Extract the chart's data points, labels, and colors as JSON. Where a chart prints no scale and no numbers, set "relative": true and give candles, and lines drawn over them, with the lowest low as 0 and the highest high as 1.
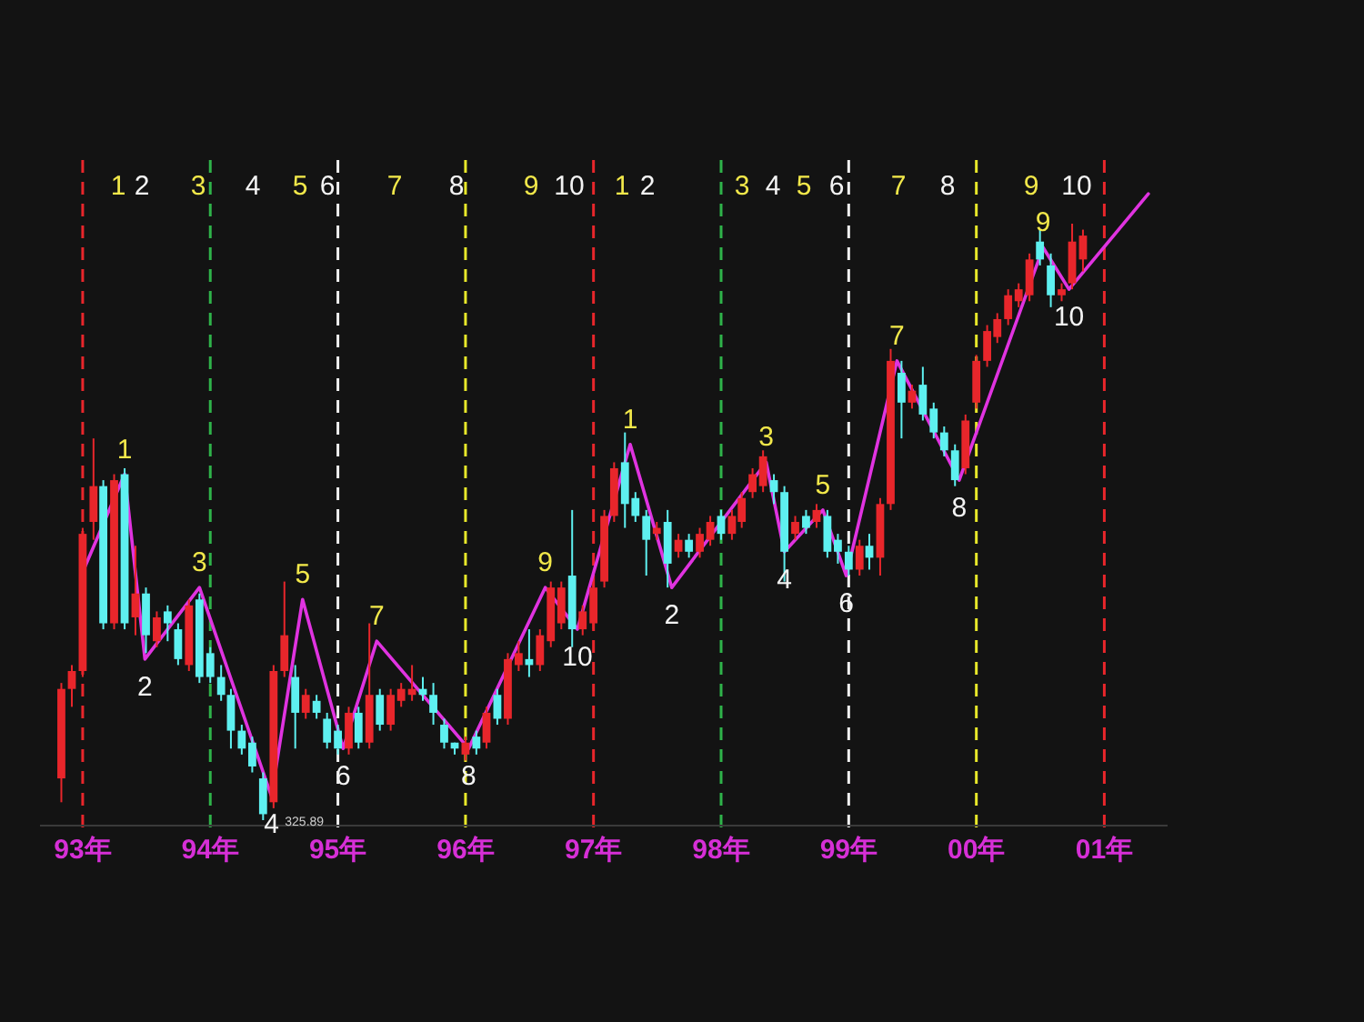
{
  "chart_data": {
    "type": "candlestick",
    "relative": true,
    "tick_labels": "x",
    "x": [
      "1992-11",
      "1992-12",
      "1993-01",
      "1993-02",
      "1993-03",
      "1993-04",
      "1993-05",
      "1993-06",
      "1993-07",
      "1993-08",
      "1993-09",
      "1993-10",
      "1993-11",
      "1993-12",
      "1994-01",
      "1994-02",
      "1994-03",
      "1994-04",
      "1994-05",
      "1994-06",
      "1994-07",
      "1994-08",
      "1994-09",
      "1994-10",
      "1994-11",
      "1994-12",
      "1995-01",
      "1995-02",
      "1995-03",
      "1995-04",
      "1995-05",
      "1995-06",
      "1995-07",
      "1995-08",
      "1995-09",
      "1995-10",
      "1995-11",
      "1995-12",
      "1996-01",
      "1996-02",
      "1996-03",
      "1996-04",
      "1996-05",
      "1996-06",
      "1996-07",
      "1996-08",
      "1996-09",
      "1996-10",
      "1996-11",
      "1996-12",
      "1997-01",
      "1997-02",
      "1997-03",
      "1997-04",
      "1997-05",
      "1997-06",
      "1997-07",
      "1997-08",
      "1997-09",
      "1997-10",
      "1997-11",
      "1997-12",
      "1998-01",
      "1998-02",
      "1998-03",
      "1998-04",
      "1998-05",
      "1998-06",
      "1998-07",
      "1998-08",
      "1998-09",
      "1998-10",
      "1998-11",
      "1998-12",
      "1999-01",
      "1999-02",
      "1999-03",
      "1999-04",
      "1999-05",
      "1999-06",
      "1999-07",
      "1999-08",
      "1999-09",
      "1999-10",
      "1999-11",
      "1999-12",
      "2000-01",
      "2000-02",
      "2000-03",
      "2000-04",
      "2000-05",
      "2000-06",
      "2000-07",
      "2000-08",
      "2000-09",
      "2000-10",
      "2000-11"
    ],
    "ohlc": [
      [
        0.07,
        0.23,
        0.03,
        0.22
      ],
      [
        0.22,
        0.26,
        0.19,
        0.25
      ],
      [
        0.25,
        0.49,
        0.24,
        0.48
      ],
      [
        0.5,
        0.64,
        0.47,
        0.56
      ],
      [
        0.56,
        0.57,
        0.32,
        0.33
      ],
      [
        0.33,
        0.58,
        0.32,
        0.57
      ],
      [
        0.58,
        0.59,
        0.32,
        0.33
      ],
      [
        0.34,
        0.46,
        0.31,
        0.38
      ],
      [
        0.38,
        0.39,
        0.28,
        0.31
      ],
      [
        0.3,
        0.35,
        0.29,
        0.34
      ],
      [
        0.35,
        0.36,
        0.3,
        0.33
      ],
      [
        0.32,
        0.33,
        0.26,
        0.27
      ],
      [
        0.26,
        0.37,
        0.25,
        0.36
      ],
      [
        0.37,
        0.38,
        0.23,
        0.24
      ],
      [
        0.28,
        0.29,
        0.23,
        0.24
      ],
      [
        0.24,
        0.26,
        0.2,
        0.21
      ],
      [
        0.21,
        0.22,
        0.12,
        0.15
      ],
      [
        0.15,
        0.16,
        0.11,
        0.12
      ],
      [
        0.13,
        0.14,
        0.08,
        0.09
      ],
      [
        0.07,
        0.08,
        0,
        0.01
      ],
      [
        0.03,
        0.26,
        0.02,
        0.25
      ],
      [
        0.25,
        0.4,
        0.24,
        0.31
      ],
      [
        0.24,
        0.26,
        0.12,
        0.18
      ],
      [
        0.18,
        0.22,
        0.17,
        0.21
      ],
      [
        0.2,
        0.21,
        0.17,
        0.18
      ],
      [
        0.17,
        0.18,
        0.12,
        0.13
      ],
      [
        0.15,
        0.16,
        0.11,
        0.12
      ],
      [
        0.12,
        0.19,
        0.11,
        0.18
      ],
      [
        0.18,
        0.19,
        0.12,
        0.13
      ],
      [
        0.13,
        0.33,
        0.12,
        0.21
      ],
      [
        0.21,
        0.22,
        0.15,
        0.16
      ],
      [
        0.16,
        0.22,
        0.15,
        0.21
      ],
      [
        0.2,
        0.23,
        0.19,
        0.22
      ],
      [
        0.21,
        0.26,
        0.2,
        0.22
      ],
      [
        0.22,
        0.24,
        0.2,
        0.21
      ],
      [
        0.21,
        0.23,
        0.16,
        0.18
      ],
      [
        0.16,
        0.17,
        0.12,
        0.13
      ],
      [
        0.13,
        0.13,
        0.11,
        0.12
      ],
      [
        0.11,
        0.14,
        0.1,
        0.13
      ],
      [
        0.14,
        0.15,
        0.11,
        0.12
      ],
      [
        0.13,
        0.19,
        0.12,
        0.18
      ],
      [
        0.21,
        0.22,
        0.16,
        0.17
      ],
      [
        0.17,
        0.28,
        0.16,
        0.27
      ],
      [
        0.26,
        0.3,
        0.25,
        0.28
      ],
      [
        0.27,
        0.32,
        0.24,
        0.26
      ],
      [
        0.26,
        0.32,
        0.25,
        0.31
      ],
      [
        0.3,
        0.4,
        0.29,
        0.39
      ],
      [
        0.33,
        0.4,
        0.32,
        0.39
      ],
      [
        0.41,
        0.52,
        0.29,
        0.32
      ],
      [
        0.32,
        0.36,
        0.31,
        0.35
      ],
      [
        0.33,
        0.4,
        0.32,
        0.39
      ],
      [
        0.4,
        0.52,
        0.39,
        0.51
      ],
      [
        0.51,
        0.6,
        0.5,
        0.59
      ],
      [
        0.6,
        0.65,
        0.49,
        0.53
      ],
      [
        0.54,
        0.55,
        0.5,
        0.51
      ],
      [
        0.51,
        0.52,
        0.41,
        0.47
      ],
      [
        0.48,
        0.5,
        0.47,
        0.49
      ],
      [
        0.5,
        0.52,
        0.39,
        0.43
      ],
      [
        0.45,
        0.48,
        0.44,
        0.47
      ],
      [
        0.47,
        0.48,
        0.44,
        0.45
      ],
      [
        0.45,
        0.49,
        0.44,
        0.48
      ],
      [
        0.47,
        0.51,
        0.46,
        0.5
      ],
      [
        0.51,
        0.52,
        0.47,
        0.48
      ],
      [
        0.48,
        0.52,
        0.47,
        0.51
      ],
      [
        0.5,
        0.55,
        0.49,
        0.54
      ],
      [
        0.55,
        0.59,
        0.54,
        0.58
      ],
      [
        0.56,
        0.62,
        0.55,
        0.61
      ],
      [
        0.57,
        0.58,
        0.53,
        0.55
      ],
      [
        0.55,
        0.56,
        0.4,
        0.45
      ],
      [
        0.48,
        0.51,
        0.47,
        0.5
      ],
      [
        0.51,
        0.52,
        0.48,
        0.49
      ],
      [
        0.5,
        0.53,
        0.49,
        0.52
      ],
      [
        0.51,
        0.52,
        0.44,
        0.45
      ],
      [
        0.47,
        0.48,
        0.43,
        0.45
      ],
      [
        0.45,
        0.46,
        0.41,
        0.42
      ],
      [
        0.42,
        0.47,
        0.41,
        0.46
      ],
      [
        0.46,
        0.48,
        0.42,
        0.44
      ],
      [
        0.44,
        0.54,
        0.41,
        0.53
      ],
      [
        0.53,
        0.79,
        0.52,
        0.77
      ],
      [
        0.75,
        0.77,
        0.64,
        0.7
      ],
      [
        0.7,
        0.73,
        0.69,
        0.72
      ],
      [
        0.73,
        0.76,
        0.67,
        0.68
      ],
      [
        0.69,
        0.7,
        0.64,
        0.65
      ],
      [
        0.65,
        0.66,
        0.61,
        0.62
      ],
      [
        0.62,
        0.63,
        0.56,
        0.57
      ],
      [
        0.59,
        0.68,
        0.58,
        0.67
      ],
      [
        0.7,
        0.78,
        0.69,
        0.77
      ],
      [
        0.77,
        0.83,
        0.76,
        0.82
      ],
      [
        0.81,
        0.85,
        0.8,
        0.84
      ],
      [
        0.84,
        0.89,
        0.83,
        0.88
      ],
      [
        0.87,
        0.9,
        0.86,
        0.89
      ],
      [
        0.88,
        0.95,
        0.87,
        0.94
      ],
      [
        0.97,
        0.99,
        0.93,
        0.94
      ],
      [
        0.93,
        0.95,
        0.86,
        0.88
      ],
      [
        0.88,
        0.9,
        0.87,
        0.89
      ],
      [
        0.9,
        1,
        0.89,
        0.97
      ],
      [
        0.94,
        0.99,
        0.92,
        0.98
      ]
    ],
    "colors": [
      "#e8262b",
      "#e8262b",
      "#e8262b",
      "#e8262b",
      "#5ef0f0",
      "#e8262b",
      "#5ef0f0",
      "#e8262b",
      "#5ef0f0",
      "#e8262b",
      "#5ef0f0",
      "#5ef0f0",
      "#e8262b",
      "#5ef0f0",
      "#5ef0f0",
      "#5ef0f0",
      "#5ef0f0",
      "#5ef0f0",
      "#5ef0f0",
      "#5ef0f0",
      "#e8262b",
      "#e8262b",
      "#5ef0f0",
      "#e8262b",
      "#5ef0f0",
      "#5ef0f0",
      "#5ef0f0",
      "#e8262b",
      "#5ef0f0",
      "#e8262b",
      "#5ef0f0",
      "#e8262b",
      "#e8262b",
      "#e8262b",
      "#5ef0f0",
      "#5ef0f0",
      "#5ef0f0",
      "#5ef0f0",
      "#e8262b",
      "#5ef0f0",
      "#e8262b",
      "#5ef0f0",
      "#e8262b",
      "#e8262b",
      "#5ef0f0",
      "#e8262b",
      "#e8262b",
      "#e8262b",
      "#5ef0f0",
      "#e8262b",
      "#e8262b",
      "#e8262b",
      "#e8262b",
      "#5ef0f0",
      "#5ef0f0",
      "#5ef0f0",
      "#e8262b",
      "#5ef0f0",
      "#e8262b",
      "#5ef0f0",
      "#e8262b",
      "#e8262b",
      "#5ef0f0",
      "#e8262b",
      "#e8262b",
      "#e8262b",
      "#e8262b",
      "#5ef0f0",
      "#5ef0f0",
      "#e8262b",
      "#5ef0f0",
      "#e8262b",
      "#5ef0f0",
      "#5ef0f0",
      "#5ef0f0",
      "#e8262b",
      "#5ef0f0",
      "#e8262b",
      "#e8262b",
      "#5ef0f0",
      "#e8262b",
      "#5ef0f0",
      "#5ef0f0",
      "#5ef0f0",
      "#5ef0f0",
      "#e8262b",
      "#e8262b",
      "#e8262b",
      "#e8262b",
      "#e8262b",
      "#e8262b",
      "#e8262b",
      "#5ef0f0",
      "#5ef0f0",
      "#e8262b",
      "#e8262b",
      "#e8262b"
    ],
    "series": [
      {
        "type": "line",
        "color": "#e033e0",
        "x": [
          "1993-01-04",
          "1993-05-01",
          "1993-06-28",
          "1993-12-01",
          "1994-06-25",
          "1994-09-22",
          "1995-01-16",
          "1995-04-22",
          "1996-01-10",
          "1996-08-16",
          "1996-11-16",
          "1997-04-16",
          "1997-08-13",
          "1998-05-10",
          "1998-07-01",
          "1998-10-19",
          "1998-12-25",
          "1999-05-19",
          "1999-11-13",
          "2000-07-10",
          "2000-09-22",
          "2001-05-07"
        ],
        "values": [
          0.42,
          0.58,
          0.27,
          0.39,
          0.04,
          0.37,
          0.12,
          0.3,
          0.12,
          0.39,
          0.32,
          0.63,
          0.39,
          0.6,
          0.45,
          0.52,
          0.41,
          0.77,
          0.57,
          0.96,
          0.89,
          1.05
        ]
      }
    ],
    "xlim": [
      "1992-09",
      "2001-07"
    ],
    "xticks": [
      {
        "value": "1993",
        "label": "93年"
      },
      {
        "value": "1994",
        "label": "94年"
      },
      {
        "value": "1995",
        "label": "95年"
      },
      {
        "value": "1996",
        "label": "96年"
      },
      {
        "value": "1997",
        "label": "97年"
      },
      {
        "value": "1998",
        "label": "98年"
      },
      {
        "value": "1999",
        "label": "99年"
      },
      {
        "value": "2000",
        "label": "00年"
      },
      {
        "value": "2001",
        "label": "01年"
      }
    ],
    "ref_lines": [
      {
        "axis": "x",
        "value": "1993",
        "color": "#e8262b",
        "line_style": "dashed"
      },
      {
        "axis": "x",
        "value": "1994",
        "color": "#2fb34a",
        "line_style": "dashed"
      },
      {
        "axis": "x",
        "value": "1995",
        "color": "#f0f0f0",
        "line_style": "dashed"
      },
      {
        "axis": "x",
        "value": "1996",
        "color": "#e8e82a",
        "line_style": "dashed"
      },
      {
        "axis": "x",
        "value": "1997",
        "color": "#e8262b",
        "line_style": "dashed"
      },
      {
        "axis": "x",
        "value": "1998",
        "color": "#2fb34a",
        "line_style": "dashed"
      },
      {
        "axis": "x",
        "value": "1999",
        "color": "#f0f0f0",
        "line_style": "dashed"
      },
      {
        "axis": "x",
        "value": "2000",
        "color": "#e8e82a",
        "line_style": "dashed"
      },
      {
        "axis": "x",
        "value": "2001",
        "color": "#e8262b",
        "line_style": "dashed"
      }
    ],
    "annotations": [
      "1",
      "2",
      "3",
      "4",
      "5",
      "6",
      "7",
      "8",
      "9",
      "10",
      "1",
      "2",
      "3",
      "4",
      "5",
      "6",
      "7",
      "8",
      "9",
      "10",
      {
        "text": "1",
        "x": "1993-05-01",
        "y": 0.58
      },
      {
        "text": "2",
        "x": "1993-06-28",
        "y": 0.27
      },
      {
        "text": "3",
        "x": "1993-12-01",
        "y": 0.39
      },
      {
        "text": "4",
        "x": "1994-06-25",
        "y": 0.04
      },
      {
        "text": "5",
        "x": "1994-09-22",
        "y": 0.37
      },
      {
        "text": "6",
        "x": "1995-01-16",
        "y": 0.12
      },
      {
        "text": "7",
        "x": "1995-04-22",
        "y": 0.3
      },
      {
        "text": "8",
        "x": "1996-01-10",
        "y": 0.12
      },
      {
        "text": "9",
        "x": "1996-08-16",
        "y": 0.39
      },
      {
        "text": "10",
        "x": "1996-11-16",
        "y": 0.32
      },
      {
        "text": "1",
        "x": "1997-04-16",
        "y": 0.63
      },
      {
        "text": "2",
        "x": "1997-08-13",
        "y": 0.39
      },
      {
        "text": "3",
        "x": "1998-05-10",
        "y": 0.6
      },
      {
        "text": "4",
        "x": "1998-07-01",
        "y": 0.45
      },
      {
        "text": "5",
        "x": "1998-10-19",
        "y": 0.52
      },
      {
        "text": "6",
        "x": "1998-12-25",
        "y": 0.41
      },
      {
        "text": "7",
        "x": "1999-05-19",
        "y": 0.77
      },
      {
        "text": "8",
        "x": "1999-11-13",
        "y": 0.57
      },
      {
        "text": "9",
        "x": "2000-07-10",
        "y": 0.96
      },
      {
        "text": "10",
        "x": "2000-09-22",
        "y": 0.89
      },
      {
        "text": "325.89",
        "x": "1994-06",
        "y": 0
      }
    ]
  }
}
